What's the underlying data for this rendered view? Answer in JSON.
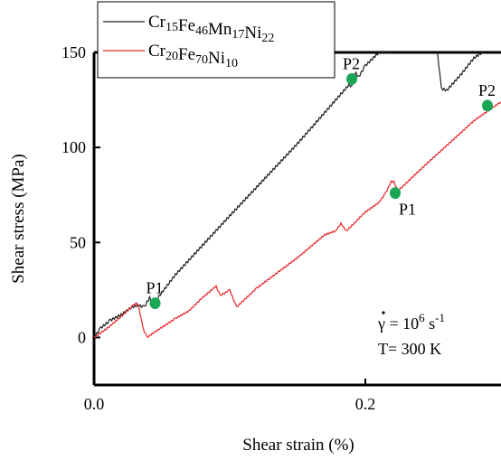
{
  "chart_data": {
    "type": "line",
    "xlabel": "Shear strain (%)",
    "ylabel": "Shear stress (MPa)",
    "xlim": [
      0,
      0.3
    ],
    "ylim": [
      -25,
      150
    ],
    "x_ticks": [
      {
        "value": 0.0,
        "label": "0.0"
      },
      {
        "value": 0.2,
        "label": "0.2"
      }
    ],
    "y_ticks": [
      {
        "value": 0,
        "label": "0"
      },
      {
        "value": 50,
        "label": "50"
      },
      {
        "value": 100,
        "label": "100"
      },
      {
        "value": 150,
        "label": "150"
      }
    ],
    "legend_position": "top-left",
    "series": [
      {
        "name": "Cr15Fe46Mn17Ni22",
        "name_parts": [
          {
            "t": "Cr",
            "sub": false
          },
          {
            "t": "15",
            "sub": true
          },
          {
            "t": "Fe",
            "sub": false
          },
          {
            "t": "46",
            "sub": true
          },
          {
            "t": "Mn",
            "sub": false
          },
          {
            "t": "17",
            "sub": true
          },
          {
            "t": "Ni",
            "sub": false
          },
          {
            "t": "22",
            "sub": true
          }
        ],
        "color": "#222222",
        "points": [
          [
            0.0,
            0
          ],
          [
            0.005,
            5
          ],
          [
            0.012,
            9
          ],
          [
            0.02,
            12
          ],
          [
            0.028,
            16
          ],
          [
            0.032,
            17
          ],
          [
            0.037,
            16
          ],
          [
            0.041,
            21
          ],
          [
            0.043,
            17
          ],
          [
            0.046,
            20
          ],
          [
            0.06,
            33
          ],
          [
            0.1,
            64
          ],
          [
            0.15,
            102
          ],
          [
            0.188,
            133
          ],
          [
            0.19,
            132
          ],
          [
            0.193,
            139
          ],
          [
            0.195,
            137
          ],
          [
            0.2,
            143
          ],
          [
            0.21,
            150
          ],
          [
            0.25,
            152
          ],
          [
            0.253,
            151
          ],
          [
            0.256,
            131
          ],
          [
            0.26,
            130
          ],
          [
            0.27,
            138
          ],
          [
            0.28,
            147
          ],
          [
            0.29,
            152
          ]
        ]
      },
      {
        "name": "Cr20Fe70Ni10",
        "name_parts": [
          {
            "t": "Cr",
            "sub": false
          },
          {
            "t": "20",
            "sub": true
          },
          {
            "t": "Fe",
            "sub": false
          },
          {
            "t": "70",
            "sub": true
          },
          {
            "t": "Ni",
            "sub": false
          },
          {
            "t": "10",
            "sub": true
          }
        ],
        "color": "#e8262a",
        "points": [
          [
            0.0,
            0
          ],
          [
            0.01,
            5
          ],
          [
            0.02,
            11
          ],
          [
            0.029,
            17
          ],
          [
            0.031,
            18
          ],
          [
            0.033,
            16
          ],
          [
            0.036,
            5
          ],
          [
            0.039,
            0
          ],
          [
            0.045,
            3
          ],
          [
            0.06,
            10
          ],
          [
            0.07,
            14
          ],
          [
            0.08,
            21
          ],
          [
            0.09,
            27
          ],
          [
            0.093,
            22
          ],
          [
            0.1,
            25
          ],
          [
            0.105,
            16
          ],
          [
            0.12,
            26
          ],
          [
            0.15,
            42
          ],
          [
            0.17,
            54
          ],
          [
            0.178,
            56
          ],
          [
            0.182,
            60
          ],
          [
            0.186,
            56
          ],
          [
            0.2,
            66
          ],
          [
            0.21,
            71
          ],
          [
            0.215,
            76
          ],
          [
            0.219,
            82
          ],
          [
            0.221,
            82
          ],
          [
            0.224,
            77
          ],
          [
            0.24,
            88
          ],
          [
            0.26,
            101
          ],
          [
            0.28,
            114
          ],
          [
            0.29,
            119
          ],
          [
            0.3,
            124
          ]
        ]
      }
    ],
    "markers": [
      {
        "label": "P1",
        "x": 0.045,
        "y": 18,
        "color": "#1aa655",
        "label_side": "above"
      },
      {
        "label": "P2",
        "x": 0.19,
        "y": 136,
        "color": "#1aa655",
        "label_side": "above"
      },
      {
        "label": "P1",
        "x": 0.222,
        "y": 76,
        "color": "#1aa655",
        "label_side": "below"
      },
      {
        "label": "P2",
        "x": 0.29,
        "y": 122,
        "color": "#1aa655",
        "label_side": "above"
      }
    ],
    "annotations": [
      {
        "name": "rate",
        "text": "γ = 10",
        "sup1": "6",
        "mid": " s",
        "sup2": "-1"
      },
      {
        "name": "temperature",
        "text": "T= 300 K"
      }
    ]
  }
}
